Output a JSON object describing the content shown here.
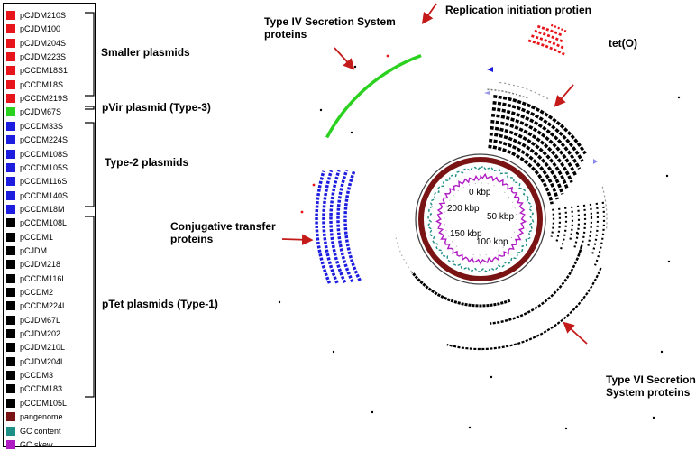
{
  "legend": {
    "items": [
      {
        "label": "pCJDM210S",
        "color": "#e8141b"
      },
      {
        "label": "pCJDM100",
        "color": "#e8141b"
      },
      {
        "label": "pCJDM204S",
        "color": "#e8141b"
      },
      {
        "label": "pCJDM223S",
        "color": "#e8141b"
      },
      {
        "label": "pCCDM18S1",
        "color": "#e8141b"
      },
      {
        "label": "pCCDM18S",
        "color": "#e8141b"
      },
      {
        "label": "pCCDM219S",
        "color": "#e8141b"
      },
      {
        "label": "pCJDM67S",
        "color": "#2bd11f"
      },
      {
        "label": "pCCDM33S",
        "color": "#1d1de0"
      },
      {
        "label": "pCCDM224S",
        "color": "#1d1de0"
      },
      {
        "label": "pCCDM108S",
        "color": "#1d1de0"
      },
      {
        "label": "pCCDM105S",
        "color": "#1d1de0"
      },
      {
        "label": "pCCDM116S",
        "color": "#1d1de0"
      },
      {
        "label": "pCCDM140S",
        "color": "#1d1de0"
      },
      {
        "label": "pCCDM18M",
        "color": "#1d1de0"
      },
      {
        "label": "pCCDM108L",
        "color": "#000000"
      },
      {
        "label": "pCCDM1",
        "color": "#000000"
      },
      {
        "label": "pCJDM",
        "color": "#000000"
      },
      {
        "label": "pCJDM218",
        "color": "#000000"
      },
      {
        "label": "pCCDM116L",
        "color": "#000000"
      },
      {
        "label": "pCCDM2",
        "color": "#000000"
      },
      {
        "label": "pCCDM224L",
        "color": "#000000"
      },
      {
        "label": "pCJDM67L",
        "color": "#000000"
      },
      {
        "label": "pCJDM202",
        "color": "#000000"
      },
      {
        "label": "pCJDM210L",
        "color": "#000000"
      },
      {
        "label": "pCJDM204L",
        "color": "#000000"
      },
      {
        "label": "pCCDM3",
        "color": "#000000"
      },
      {
        "label": "pCCDM183",
        "color": "#000000"
      },
      {
        "label": "pCCDM105L",
        "color": "#000000"
      },
      {
        "label": "pangenome",
        "color": "#7a1414"
      },
      {
        "label": "GC content",
        "color": "#1e8f86"
      },
      {
        "label": "GC skew",
        "color": "#b01cc4"
      }
    ]
  },
  "groups": {
    "smaller": "Smaller plasmids",
    "pvir": "pVir plasmid (Type-3)",
    "type2": "Type-2 plasmids",
    "ptet": "pTet plasmids (Type-1)"
  },
  "annotations": {
    "t4ss_line1": "Type IV Secretion System",
    "t4ss_line2": "proteins",
    "replication": "Replication initiation protien",
    "teto": "tet(O)",
    "conj_line1": "Conjugative transfer",
    "conj_line2": "proteins",
    "t6ss_line1": "Type VI Secretion",
    "t6ss_line2": "System proteins"
  },
  "axis": {
    "tick0": "0 kbp",
    "tick50": "50 kbp",
    "tick100": "100 kbp",
    "tick150": "150 kbp",
    "tick200": "200 kbp"
  },
  "colors": {
    "red": "#e8141b",
    "green": "#2bd11f",
    "blue": "#1d1de0",
    "black": "#000000",
    "pangenome": "#7a1414",
    "gc_content": "#1e8f86",
    "gc_skew": "#b01cc4",
    "arrow": "#c41a1a"
  }
}
